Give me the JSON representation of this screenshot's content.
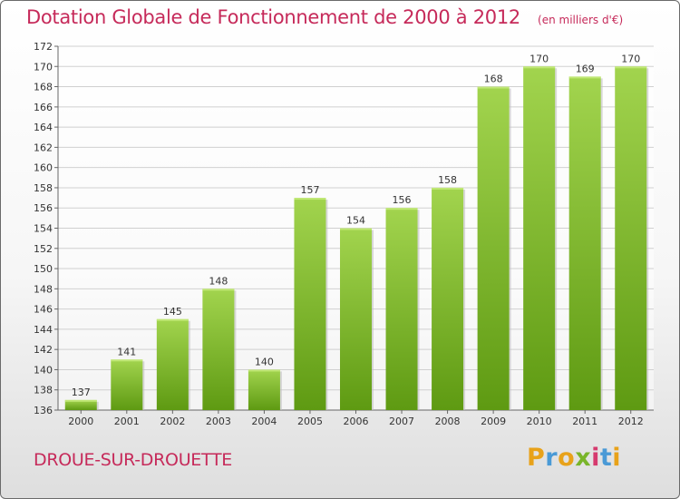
{
  "header": {
    "title": "Dotation Globale de Fonctionnement de 2000 à 2012",
    "subtitle": "(en milliers d'€)"
  },
  "footer": {
    "commune": "DROUE-SUR-DROUETTE",
    "logo": {
      "letters": [
        "P",
        "r",
        "o",
        "x",
        "i",
        "t",
        "i"
      ],
      "colors": [
        "#e8a21a",
        "#4a9ad6",
        "#e8a21a",
        "#79b52a",
        "#d63a6e",
        "#4a9ad6",
        "#e8a21a"
      ]
    }
  },
  "colors": {
    "accent": "#c62a5a",
    "bar_light": "#a2d44e",
    "bar_dark": "#5e9a12"
  },
  "chart_data": {
    "type": "bar",
    "title": "Dotation Globale de Fonctionnement de 2000 à 2012",
    "subtitle": "(en milliers d'€)",
    "categories": [
      "2000",
      "2001",
      "2002",
      "2003",
      "2004",
      "2005",
      "2006",
      "2007",
      "2008",
      "2009",
      "2010",
      "2011",
      "2012"
    ],
    "values": [
      137,
      141,
      145,
      148,
      140,
      157,
      154,
      156,
      158,
      168,
      170,
      169,
      170
    ],
    "ylim": [
      136,
      172
    ],
    "yticks": [
      136,
      138,
      140,
      142,
      144,
      146,
      148,
      150,
      152,
      154,
      156,
      158,
      160,
      162,
      164,
      166,
      168,
      170,
      172
    ],
    "grid": true,
    "xlabel": "",
    "ylabel": ""
  }
}
